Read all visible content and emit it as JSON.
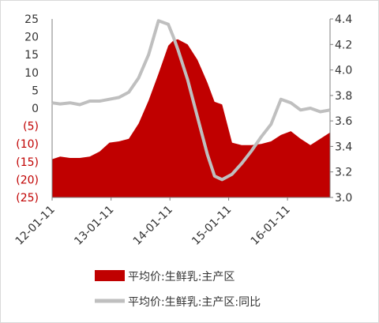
{
  "chart_data": {
    "type": "area",
    "title": "",
    "xlabel": "",
    "ylabel": "",
    "y_left_ticks": [
      "25",
      "20",
      "15",
      "10",
      "5",
      "0",
      "(5)",
      "(10)",
      "(15)",
      "(20)",
      "(25)"
    ],
    "y_right_ticks": [
      "4.4",
      "4.2",
      "4.0",
      "3.8",
      "3.6",
      "3.4",
      "3.2",
      "3.0"
    ],
    "x_tick_labels": [
      "12-01-11",
      "13-01-11",
      "14-01-11",
      "15-01-11",
      "16-01-11"
    ],
    "ylim_left": [
      -25,
      25
    ],
    "ylim_right": [
      3.0,
      4.4
    ],
    "grid": false,
    "legend_position": "bottom",
    "colors": {
      "bar_series": "#c00000",
      "line_series": "#bfbfbf",
      "negative_tick": "#c00000"
    },
    "series": [
      {
        "name": "平均价:生鲜乳:主产区",
        "axis": "right",
        "style": "area",
        "x": [
          "2012-01-11",
          "2012-03-01",
          "2012-05-01",
          "2012-07-01",
          "2012-09-01",
          "2012-11-01",
          "2013-01-01",
          "2013-03-01",
          "2013-05-01",
          "2013-07-01",
          "2013-09-01",
          "2013-11-01",
          "2014-01-01",
          "2014-02-01",
          "2014-03-01",
          "2014-05-01",
          "2014-07-01",
          "2014-09-01",
          "2014-10-15",
          "2014-12-01",
          "2015-02-01",
          "2015-04-01",
          "2015-06-01",
          "2015-08-01",
          "2015-10-01",
          "2015-12-01",
          "2016-02-01",
          "2016-04-01",
          "2016-06-01",
          "2016-08-01",
          "2016-10-01"
        ],
        "values": [
          3.3,
          3.32,
          3.31,
          3.31,
          3.32,
          3.36,
          3.43,
          3.44,
          3.46,
          3.58,
          3.76,
          3.97,
          4.19,
          4.23,
          4.24,
          4.2,
          4.08,
          3.9,
          3.75,
          3.73,
          3.43,
          3.41,
          3.41,
          3.42,
          3.44,
          3.49,
          3.52,
          3.46,
          3.41,
          3.46,
          3.51
        ]
      },
      {
        "name": "平均价:生鲜乳:主产区:同比",
        "axis": "left",
        "style": "line",
        "x": [
          "2012-01-11",
          "2012-03-01",
          "2012-05-01",
          "2012-07-01",
          "2012-09-01",
          "2012-11-01",
          "2013-01-01",
          "2013-03-01",
          "2013-05-01",
          "2013-07-01",
          "2013-09-01",
          "2013-11-01",
          "2014-01-01",
          "2014-02-01",
          "2014-03-01",
          "2014-05-01",
          "2014-07-01",
          "2014-09-01",
          "2014-10-15",
          "2014-12-01",
          "2015-02-01",
          "2015-04-01",
          "2015-06-01",
          "2015-08-01",
          "2015-10-01",
          "2015-12-01",
          "2016-02-01",
          "2016-04-01",
          "2016-06-01",
          "2016-08-01",
          "2016-10-01"
        ],
        "values": [
          1.5,
          1.2,
          1.5,
          1.0,
          2.0,
          2.0,
          2.5,
          3.0,
          4.5,
          8.5,
          15.0,
          24.5,
          23.5,
          20.0,
          16.5,
          8.0,
          -2.5,
          -13.0,
          -19.0,
          -20.0,
          -18.5,
          -15.5,
          -12.0,
          -8.0,
          -4.5,
          2.5,
          1.5,
          -0.5,
          0.0,
          -1.0,
          -0.5
        ]
      }
    ]
  }
}
